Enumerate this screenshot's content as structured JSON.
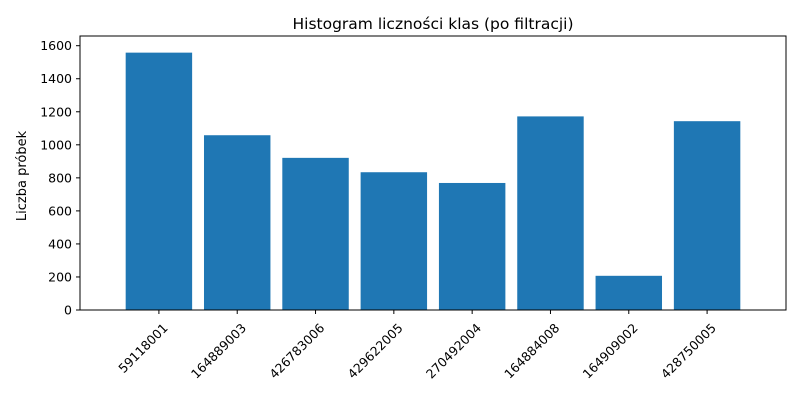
{
  "chart_data": {
    "type": "bar",
    "title": "Histogram liczności klas (po filtracji)",
    "xlabel": "",
    "ylabel": "Liczba próbek",
    "categories": [
      "59118001",
      "164889003",
      "426783006",
      "429622005",
      "270492004",
      "164884008",
      "164909002",
      "428750005"
    ],
    "values": [
      1558,
      1058,
      921,
      834,
      769,
      1172,
      207,
      1143
    ],
    "ylim": [
      0,
      1600
    ],
    "yticks": [
      0,
      200,
      400,
      600,
      800,
      1000,
      1200,
      1400,
      1600
    ],
    "xtick_rotation_deg": 45,
    "bar_color": "#1f77b4",
    "grid": false,
    "legend": "none"
  }
}
